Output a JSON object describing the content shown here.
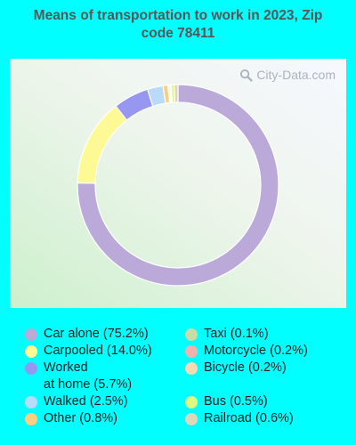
{
  "chart_data": {
    "type": "pie",
    "title": "Means of transportation to work in 2023, Zip code 78411",
    "watermark": "City-Data.com",
    "slices": [
      {
        "label": "Car alone (75.2%)",
        "value": 75.2,
        "color": "#bba9da"
      },
      {
        "label": "Carpooled (14.0%)",
        "value": 14.0,
        "color": "#fdfa96"
      },
      {
        "label": "Worked at home (5.7%)",
        "value": 5.7,
        "color": "#9797f1"
      },
      {
        "label": "Walked (2.5%)",
        "value": 2.5,
        "color": "#b9daf9"
      },
      {
        "label": "Other (0.8%)",
        "value": 0.8,
        "color": "#fecf7d"
      },
      {
        "label": "Taxi (0.1%)",
        "value": 0.1,
        "color": "#c8dca7"
      },
      {
        "label": "Motorcycle (0.2%)",
        "value": 0.2,
        "color": "#f1b1ad"
      },
      {
        "label": "Bicycle (0.2%)",
        "value": 0.2,
        "color": "#fdd8b0"
      },
      {
        "label": "Bus (0.5%)",
        "value": 0.5,
        "color": "#dcf982"
      },
      {
        "label": "Railroad (0.6%)",
        "value": 0.6,
        "color": "#dfd8b8"
      }
    ],
    "legend_placement": "bottom"
  },
  "legend_order": {
    "left": [
      "Car alone (75.2%)",
      "Carpooled (14.0%)",
      "Worked\nat home (5.7%)",
      "Walked (2.5%)",
      "Other (0.8%)"
    ],
    "right": [
      "Taxi (0.1%)",
      "Motorcycle (0.2%)",
      "Bicycle (0.2%)",
      "Bus (0.5%)",
      "Railroad (0.6%)"
    ]
  }
}
